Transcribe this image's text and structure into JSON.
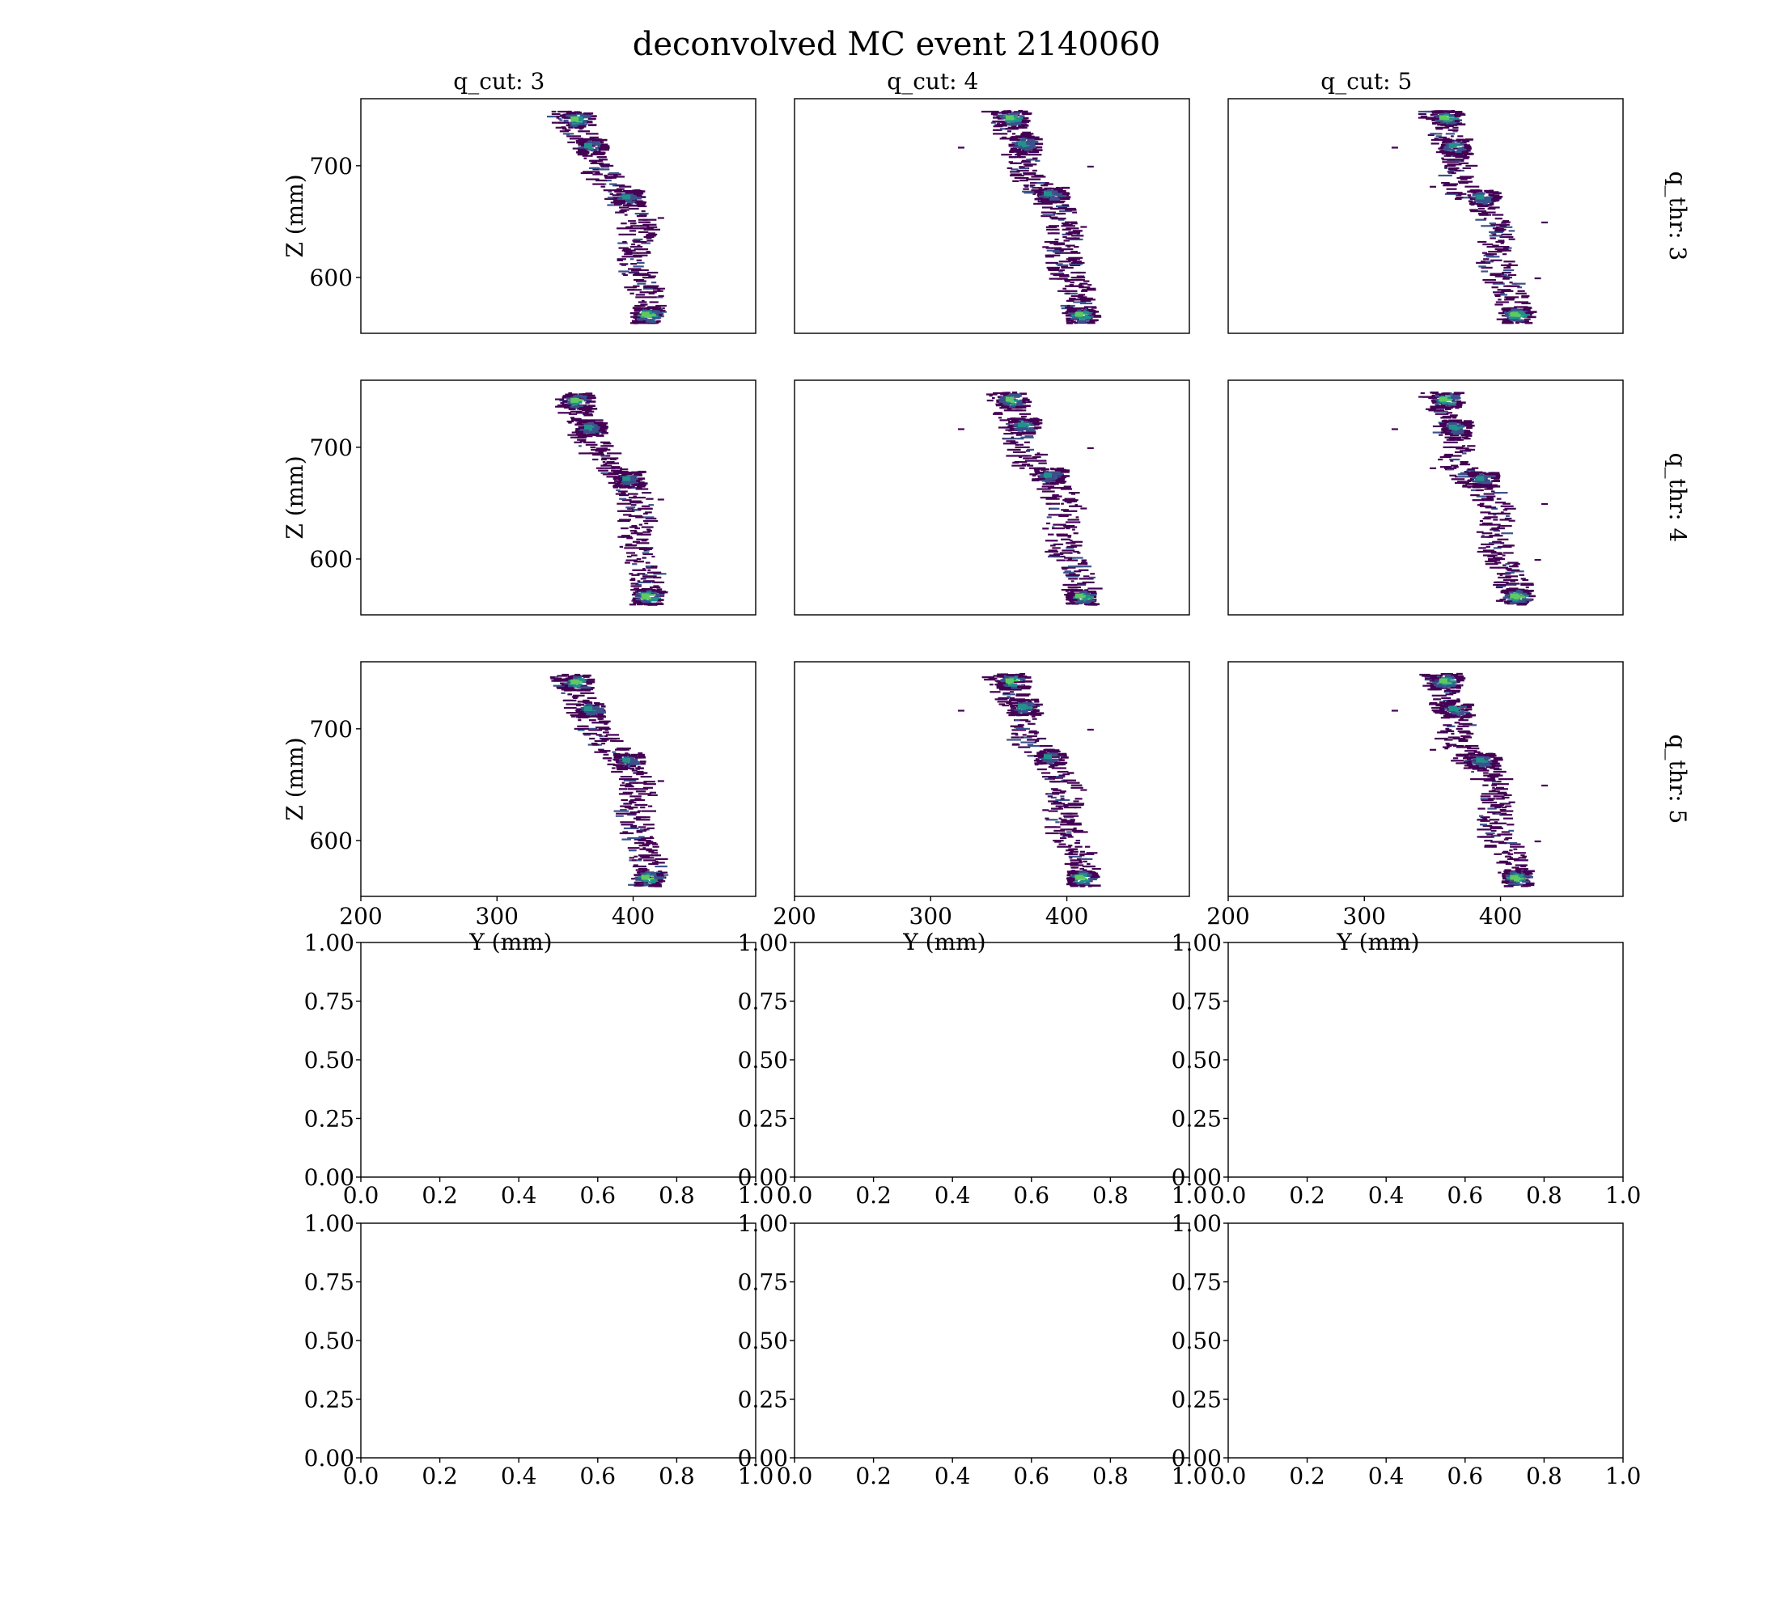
{
  "figure": {
    "title": "deconvolved MC event 2140060",
    "colormap": [
      "#440154",
      "#3b528b",
      "#21918c",
      "#5ec962",
      "#fde725"
    ]
  },
  "chart_data": [
    {
      "type": "heatmap",
      "row_label": "q_thr: 3",
      "col_label": "q_cut: 3",
      "xlabel": "Y (mm)",
      "ylabel": "Z (mm)",
      "xlim": [
        200,
        490
      ],
      "ylim": [
        550,
        760
      ],
      "xticks": [],
      "yticks": [
        600,
        700
      ],
      "track": [
        [
          348,
          750
        ],
        [
          355,
          740
        ],
        [
          363,
          725
        ],
        [
          365,
          715
        ],
        [
          372,
          700
        ],
        [
          380,
          688
        ],
        [
          390,
          675
        ],
        [
          400,
          660
        ],
        [
          405,
          640
        ],
        [
          400,
          620
        ],
        [
          405,
          600
        ],
        [
          410,
          585
        ],
        [
          412,
          570
        ],
        [
          410,
          560
        ]
      ],
      "hotspots": [
        [
          357,
          742,
          0.8
        ],
        [
          367,
          718,
          0.5
        ],
        [
          395,
          672,
          0.4
        ],
        [
          409,
          567,
          0.95
        ]
      ],
      "outliers": [
        [
          363,
          712
        ],
        [
          383,
          690
        ],
        [
          418,
          654
        ],
        [
          398,
          613
        ]
      ]
    },
    {
      "type": "heatmap",
      "row_label": "q_thr: 3",
      "col_label": "q_cut: 4",
      "xlabel": "Y (mm)",
      "ylabel": "Z (mm)",
      "xlim": [
        200,
        490
      ],
      "ylim": [
        550,
        760
      ],
      "xticks": [],
      "yticks": [],
      "track": [
        [
          350,
          750
        ],
        [
          355,
          740
        ],
        [
          362,
          725
        ],
        [
          366,
          715
        ],
        [
          368,
          702
        ],
        [
          372,
          688
        ],
        [
          385,
          675
        ],
        [
          395,
          660
        ],
        [
          398,
          640
        ],
        [
          396,
          620
        ],
        [
          400,
          605
        ],
        [
          408,
          590
        ],
        [
          411,
          575
        ],
        [
          410,
          560
        ]
      ],
      "hotspots": [
        [
          358,
          743,
          0.85
        ],
        [
          367,
          720,
          0.55
        ],
        [
          386,
          675,
          0.45
        ],
        [
          409,
          567,
          0.95
        ]
      ],
      "outliers": [
        [
          320,
          717
        ],
        [
          415,
          700
        ],
        [
          360,
          687
        ],
        [
          410,
          646
        ],
        [
          382,
          628
        ]
      ]
    },
    {
      "type": "heatmap",
      "row_label": "q_thr: 3",
      "col_label": "q_cut: 5",
      "xlabel": "Y (mm)",
      "ylabel": "Z (mm)",
      "xlim": [
        200,
        490
      ],
      "ylim": [
        550,
        760
      ],
      "xticks": [],
      "yticks": [],
      "track": [
        [
          352,
          750
        ],
        [
          357,
          740
        ],
        [
          360,
          728
        ],
        [
          365,
          715
        ],
        [
          368,
          702
        ],
        [
          366,
          690
        ],
        [
          375,
          675
        ],
        [
          390,
          662
        ],
        [
          398,
          645
        ],
        [
          395,
          625
        ],
        [
          398,
          605
        ],
        [
          406,
          590
        ],
        [
          410,
          575
        ],
        [
          410,
          560
        ]
      ],
      "hotspots": [
        [
          358,
          743,
          0.85
        ],
        [
          365,
          718,
          0.55
        ],
        [
          385,
          672,
          0.45
        ],
        [
          410,
          567,
          0.95
        ]
      ],
      "outliers": [
        [
          320,
          717
        ],
        [
          348,
          682
        ],
        [
          425,
          600
        ],
        [
          406,
          635
        ],
        [
          430,
          650
        ]
      ]
    },
    {
      "type": "heatmap",
      "row_label": "q_thr: 4",
      "col_label": "q_cut: 3",
      "xlabel": "Y (mm)",
      "ylabel": "Z (mm)",
      "xlim": [
        200,
        490
      ],
      "ylim": [
        550,
        760
      ],
      "xticks": [],
      "yticks": [
        600,
        700
      ],
      "track": [
        [
          348,
          750
        ],
        [
          355,
          740
        ],
        [
          363,
          725
        ],
        [
          365,
          715
        ],
        [
          372,
          700
        ],
        [
          380,
          688
        ],
        [
          390,
          675
        ],
        [
          400,
          660
        ],
        [
          405,
          640
        ],
        [
          400,
          620
        ],
        [
          405,
          600
        ],
        [
          410,
          585
        ],
        [
          412,
          570
        ],
        [
          410,
          560
        ]
      ],
      "hotspots": [
        [
          357,
          742,
          0.8
        ],
        [
          367,
          718,
          0.5
        ],
        [
          395,
          672,
          0.4
        ],
        [
          409,
          567,
          0.95
        ]
      ],
      "outliers": [
        [
          363,
          712
        ],
        [
          383,
          690
        ],
        [
          418,
          654
        ],
        [
          398,
          613
        ]
      ]
    },
    {
      "type": "heatmap",
      "row_label": "q_thr: 4",
      "col_label": "q_cut: 4",
      "xlabel": "Y (mm)",
      "ylabel": "Z (mm)",
      "xlim": [
        200,
        490
      ],
      "ylim": [
        550,
        760
      ],
      "xticks": [],
      "yticks": [],
      "track": [
        [
          350,
          750
        ],
        [
          355,
          740
        ],
        [
          362,
          725
        ],
        [
          366,
          715
        ],
        [
          368,
          702
        ],
        [
          372,
          688
        ],
        [
          385,
          675
        ],
        [
          395,
          660
        ],
        [
          398,
          640
        ],
        [
          396,
          620
        ],
        [
          400,
          605
        ],
        [
          408,
          590
        ],
        [
          411,
          575
        ],
        [
          410,
          560
        ]
      ],
      "hotspots": [
        [
          358,
          743,
          0.85
        ],
        [
          367,
          720,
          0.55
        ],
        [
          386,
          675,
          0.45
        ],
        [
          409,
          567,
          0.95
        ]
      ],
      "outliers": [
        [
          320,
          717
        ],
        [
          415,
          700
        ],
        [
          360,
          687
        ],
        [
          410,
          646
        ],
        [
          382,
          628
        ]
      ]
    },
    {
      "type": "heatmap",
      "row_label": "q_thr: 4",
      "col_label": "q_cut: 5",
      "xlabel": "Y (mm)",
      "ylabel": "Z (mm)",
      "xlim": [
        200,
        490
      ],
      "ylim": [
        550,
        760
      ],
      "xticks": [],
      "yticks": [],
      "track": [
        [
          352,
          750
        ],
        [
          357,
          740
        ],
        [
          360,
          728
        ],
        [
          365,
          715
        ],
        [
          368,
          702
        ],
        [
          366,
          690
        ],
        [
          375,
          675
        ],
        [
          390,
          662
        ],
        [
          398,
          645
        ],
        [
          395,
          625
        ],
        [
          398,
          605
        ],
        [
          406,
          590
        ],
        [
          410,
          575
        ],
        [
          410,
          560
        ]
      ],
      "hotspots": [
        [
          358,
          743,
          0.85
        ],
        [
          365,
          718,
          0.55
        ],
        [
          385,
          672,
          0.45
        ],
        [
          410,
          567,
          0.95
        ]
      ],
      "outliers": [
        [
          320,
          717
        ],
        [
          348,
          682
        ],
        [
          425,
          600
        ],
        [
          406,
          635
        ],
        [
          430,
          650
        ]
      ]
    },
    {
      "type": "heatmap",
      "row_label": "q_thr: 5",
      "col_label": "q_cut: 3",
      "xlabel": "Y (mm)",
      "ylabel": "Z (mm)",
      "xlim": [
        200,
        490
      ],
      "ylim": [
        550,
        760
      ],
      "xticks": [
        200,
        300,
        400
      ],
      "yticks": [
        600,
        700
      ],
      "track": [
        [
          348,
          750
        ],
        [
          355,
          740
        ],
        [
          363,
          725
        ],
        [
          365,
          715
        ],
        [
          372,
          700
        ],
        [
          380,
          688
        ],
        [
          390,
          675
        ],
        [
          400,
          660
        ],
        [
          405,
          640
        ],
        [
          400,
          620
        ],
        [
          405,
          600
        ],
        [
          410,
          585
        ],
        [
          412,
          570
        ],
        [
          410,
          560
        ]
      ],
      "hotspots": [
        [
          357,
          742,
          0.8
        ],
        [
          367,
          718,
          0.5
        ],
        [
          395,
          672,
          0.4
        ],
        [
          409,
          567,
          0.95
        ]
      ],
      "outliers": [
        [
          363,
          712
        ],
        [
          383,
          690
        ],
        [
          418,
          654
        ],
        [
          398,
          613
        ]
      ]
    },
    {
      "type": "heatmap",
      "row_label": "q_thr: 5",
      "col_label": "q_cut: 4",
      "xlabel": "Y (mm)",
      "ylabel": "Z (mm)",
      "xlim": [
        200,
        490
      ],
      "ylim": [
        550,
        760
      ],
      "xticks": [
        200,
        300,
        400
      ],
      "yticks": [],
      "track": [
        [
          350,
          750
        ],
        [
          355,
          740
        ],
        [
          362,
          725
        ],
        [
          366,
          715
        ],
        [
          368,
          702
        ],
        [
          372,
          688
        ],
        [
          385,
          675
        ],
        [
          395,
          660
        ],
        [
          398,
          640
        ],
        [
          396,
          620
        ],
        [
          400,
          605
        ],
        [
          408,
          590
        ],
        [
          411,
          575
        ],
        [
          410,
          560
        ]
      ],
      "hotspots": [
        [
          358,
          743,
          0.85
        ],
        [
          367,
          720,
          0.55
        ],
        [
          386,
          675,
          0.45
        ],
        [
          409,
          567,
          0.95
        ]
      ],
      "outliers": [
        [
          320,
          717
        ],
        [
          415,
          700
        ],
        [
          360,
          687
        ],
        [
          410,
          646
        ],
        [
          382,
          628
        ]
      ]
    },
    {
      "type": "heatmap",
      "row_label": "q_thr: 5",
      "col_label": "q_cut: 5",
      "xlabel": "Y (mm)",
      "ylabel": "Z (mm)",
      "xlim": [
        200,
        490
      ],
      "ylim": [
        550,
        760
      ],
      "xticks": [
        200,
        300,
        400
      ],
      "yticks": [],
      "track": [
        [
          352,
          750
        ],
        [
          357,
          740
        ],
        [
          360,
          728
        ],
        [
          365,
          715
        ],
        [
          368,
          702
        ],
        [
          366,
          690
        ],
        [
          375,
          675
        ],
        [
          390,
          662
        ],
        [
          398,
          645
        ],
        [
          395,
          625
        ],
        [
          398,
          605
        ],
        [
          406,
          590
        ],
        [
          410,
          575
        ],
        [
          410,
          560
        ]
      ],
      "hotspots": [
        [
          358,
          743,
          0.85
        ],
        [
          365,
          718,
          0.55
        ],
        [
          385,
          672,
          0.45
        ],
        [
          410,
          567,
          0.95
        ]
      ],
      "outliers": [
        [
          320,
          717
        ],
        [
          348,
          682
        ],
        [
          425,
          600
        ],
        [
          406,
          635
        ],
        [
          430,
          650
        ]
      ]
    },
    {
      "type": "scatter",
      "xlim": [
        0,
        1
      ],
      "ylim": [
        0,
        1
      ],
      "xticks": [
        "0.0",
        "0.2",
        "0.4",
        "0.6",
        "0.8",
        "1.0"
      ],
      "yticks": [
        "0.00",
        "0.25",
        "0.50",
        "0.75",
        "1.00"
      ],
      "values": []
    },
    {
      "type": "scatter",
      "xlim": [
        0,
        1
      ],
      "ylim": [
        0,
        1
      ],
      "xticks": [
        "0.0",
        "0.2",
        "0.4",
        "0.6",
        "0.8",
        "1.0"
      ],
      "yticks": [
        "0.00",
        "0.25",
        "0.50",
        "0.75",
        "1.00"
      ],
      "values": []
    },
    {
      "type": "scatter",
      "xlim": [
        0,
        1
      ],
      "ylim": [
        0,
        1
      ],
      "xticks": [
        "0.0",
        "0.2",
        "0.4",
        "0.6",
        "0.8",
        "1.0"
      ],
      "yticks": [
        "0.00",
        "0.25",
        "0.50",
        "0.75",
        "1.00"
      ],
      "values": []
    },
    {
      "type": "scatter",
      "xlim": [
        0,
        1
      ],
      "ylim": [
        0,
        1
      ],
      "xticks": [
        "0.0",
        "0.2",
        "0.4",
        "0.6",
        "0.8",
        "1.0"
      ],
      "yticks": [
        "0.00",
        "0.25",
        "0.50",
        "0.75",
        "1.00"
      ],
      "values": []
    },
    {
      "type": "scatter",
      "xlim": [
        0,
        1
      ],
      "ylim": [
        0,
        1
      ],
      "xticks": [
        "0.0",
        "0.2",
        "0.4",
        "0.6",
        "0.8",
        "1.0"
      ],
      "yticks": [
        "0.00",
        "0.25",
        "0.50",
        "0.75",
        "1.00"
      ],
      "values": []
    },
    {
      "type": "scatter",
      "xlim": [
        0,
        1
      ],
      "ylim": [
        0,
        1
      ],
      "xticks": [
        "0.0",
        "0.2",
        "0.4",
        "0.6",
        "0.8",
        "1.0"
      ],
      "yticks": [
        "0.00",
        "0.25",
        "0.50",
        "0.75",
        "1.00"
      ],
      "values": []
    }
  ]
}
